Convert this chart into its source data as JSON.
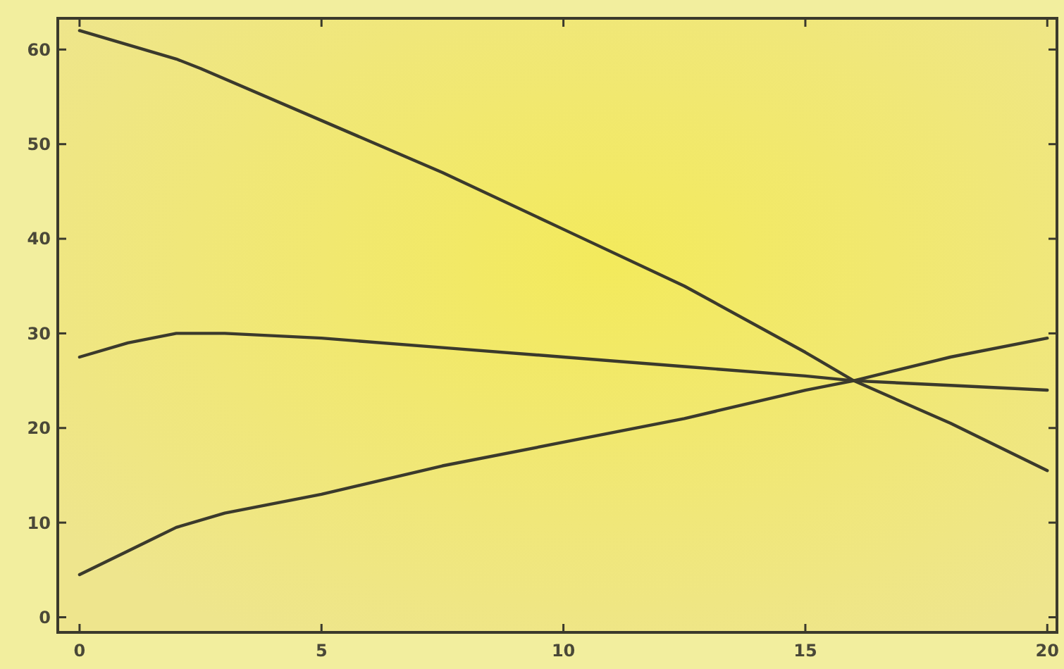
{
  "chart_data": {
    "type": "line",
    "xlim": [
      -0.45,
      20.2
    ],
    "ylim": [
      -1.6,
      63.3
    ],
    "xticks": [
      0,
      5,
      10,
      15,
      20
    ],
    "yticks": [
      0,
      10,
      20,
      30,
      40,
      50,
      60
    ],
    "grid": false,
    "marker": "none",
    "line_style": "solid",
    "series": [
      {
        "color": "#3b3a2c",
        "x": [
          0,
          1,
          2,
          2.5,
          5,
          7.5,
          10,
          12.5,
          15,
          16,
          18,
          20
        ],
        "values": [
          62,
          60.5,
          59,
          58,
          52.5,
          47,
          41,
          35,
          28,
          25,
          20.5,
          15.5
        ]
      },
      {
        "color": "#3b3a2c",
        "x": [
          0,
          1,
          2,
          3,
          5,
          7.5,
          10,
          12.5,
          15,
          16,
          18,
          20
        ],
        "values": [
          27.5,
          29,
          30,
          30,
          29.5,
          28.5,
          27.5,
          26.5,
          25.5,
          25,
          24.5,
          24
        ]
      },
      {
        "color": "#3b3a2c",
        "x": [
          0,
          1,
          2,
          3,
          5,
          7.5,
          10,
          12.5,
          15,
          16,
          18,
          20
        ],
        "values": [
          4.5,
          7,
          9.5,
          11,
          13,
          16,
          18.5,
          21,
          24,
          25,
          27.5,
          29.5
        ]
      }
    ]
  }
}
